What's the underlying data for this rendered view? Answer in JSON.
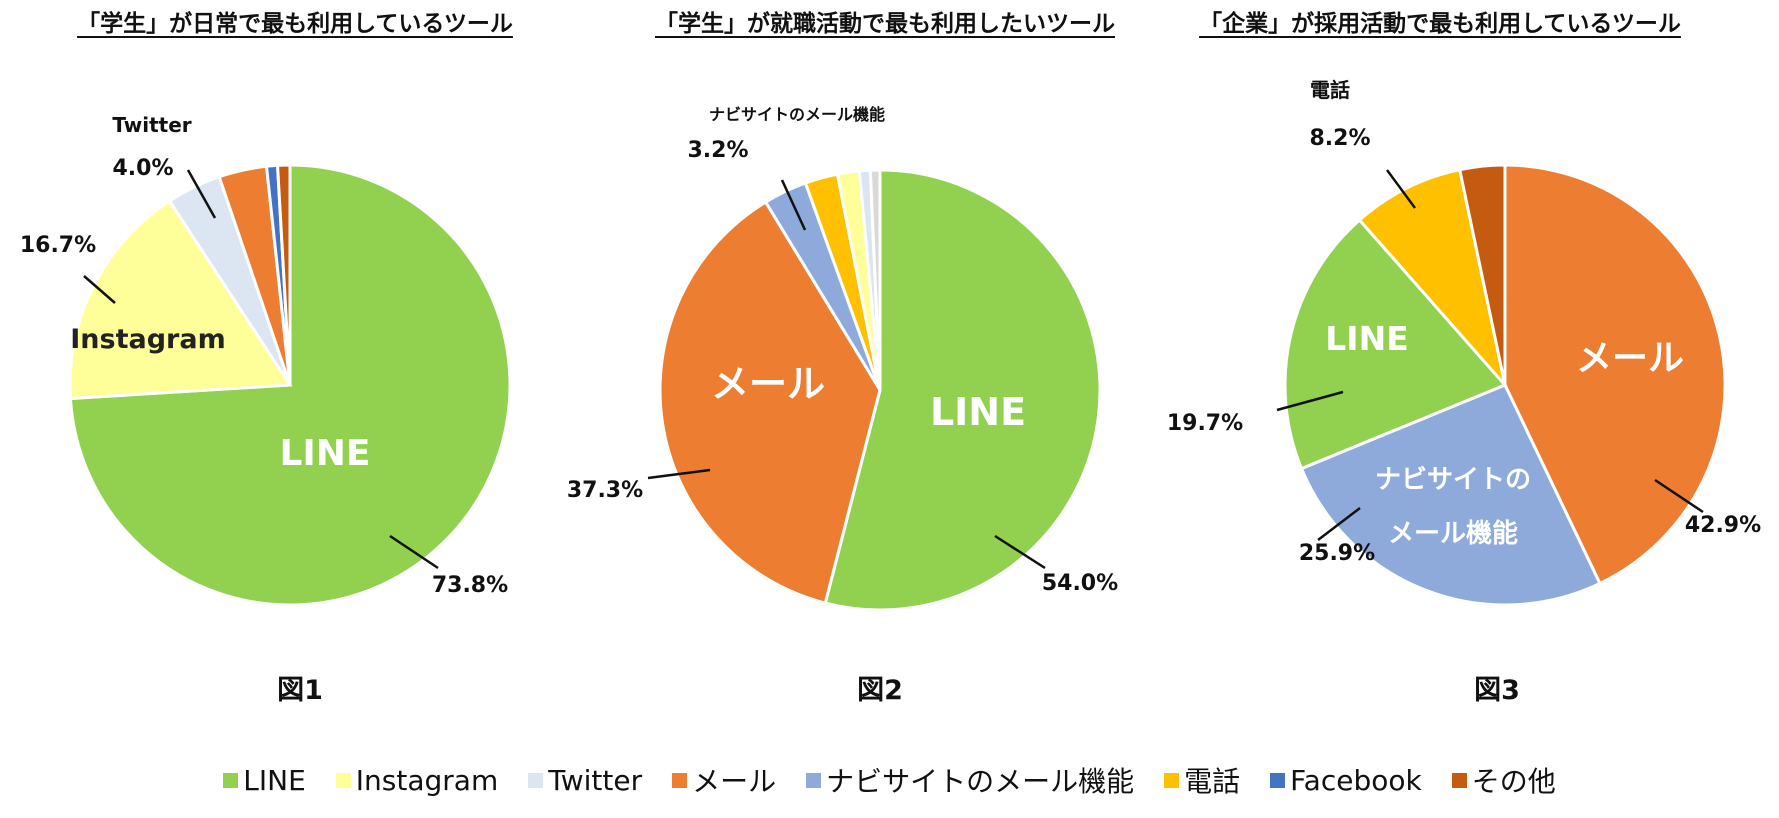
{
  "titles": {
    "fig1": "「学生」が日常で最も利用しているツール",
    "fig2": "「学生」が就職活動で最も利用したいツール",
    "fig3": "「企業」が採用活動で最も利用しているツール"
  },
  "captions": {
    "fig1": "図1",
    "fig2": "図2",
    "fig3": "図3"
  },
  "colors": {
    "LINE": "#92d050",
    "Instagram": "#ffff99",
    "Twitter": "#dce6f2",
    "メール": "#ed7d31",
    "ナビサイトのメール機能": "#8eaadb",
    "電話": "#ffc000",
    "Facebook": "#4472c4",
    "その他": "#c55a11",
    "その他2": "#d9d9d9"
  },
  "legend": [
    "LINE",
    "Instagram",
    "Twitter",
    "メール",
    "ナビサイトのメール機能",
    "電話",
    "Facebook",
    "その他"
  ],
  "chart_data": [
    {
      "type": "pie",
      "title": "「学生」が日常で最も利用しているツール",
      "caption": "図1",
      "slices": [
        {
          "name": "LINE",
          "value": 73.8,
          "label": "73.8%",
          "inner": "LINE"
        },
        {
          "name": "Instagram",
          "value": 16.7,
          "label": "16.7%",
          "inner": "Instagram"
        },
        {
          "name": "Twitter",
          "value": 4.0,
          "label": "4.0%",
          "outer": "Twitter"
        },
        {
          "name": "メール",
          "value": 3.5
        },
        {
          "name": "Facebook",
          "value": 0.8
        },
        {
          "name": "その他",
          "value": 0.9
        }
      ]
    },
    {
      "type": "pie",
      "title": "「学生」が就職活動で最も利用したいツール",
      "caption": "図2",
      "slices": [
        {
          "name": "LINE",
          "value": 54.0,
          "label": "54.0%",
          "inner": "LINE"
        },
        {
          "name": "メール",
          "value": 37.3,
          "label": "37.3%",
          "inner": "メール"
        },
        {
          "name": "ナビサイトのメール機能",
          "value": 3.2,
          "label": "3.2%",
          "outer": "ナビサイトのメール機能"
        },
        {
          "name": "電話",
          "value": 2.4
        },
        {
          "name": "Instagram",
          "value": 1.6
        },
        {
          "name": "Twitter",
          "value": 0.8
        },
        {
          "name": "その他2",
          "value": 0.7
        }
      ]
    },
    {
      "type": "pie",
      "title": "「企業」が採用活動で最も利用しているツール",
      "caption": "図3",
      "slices": [
        {
          "name": "メール",
          "value": 42.9,
          "label": "42.9%",
          "inner": "メール"
        },
        {
          "name": "ナビサイトのメール機能",
          "value": 25.9,
          "label": "25.9%",
          "inner": "ナビサイトの\nメール機能"
        },
        {
          "name": "LINE",
          "value": 19.7,
          "label": "19.7%",
          "inner": "LINE"
        },
        {
          "name": "電話",
          "value": 8.2,
          "label": "8.2%",
          "outer": "電話"
        },
        {
          "name": "その他",
          "value": 3.3
        }
      ]
    }
  ]
}
